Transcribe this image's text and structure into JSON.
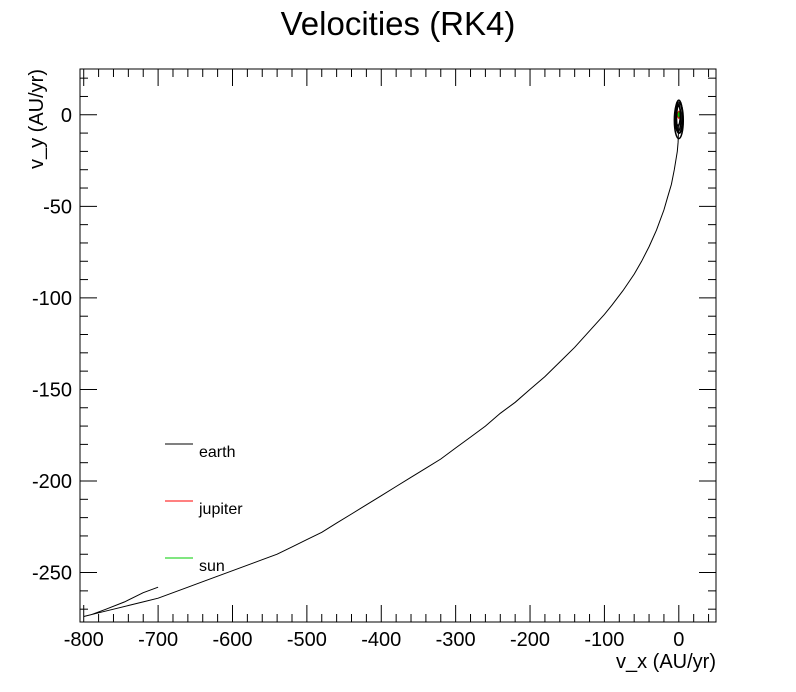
{
  "chart_data": {
    "type": "line",
    "title": "Velocities (RK4)",
    "xlabel": "v_x (AU/yr)",
    "ylabel": "v_y (AU/yr)",
    "xlim": [
      -805,
      50
    ],
    "ylim": [
      -277,
      25
    ],
    "xticks": [
      -800,
      -700,
      -600,
      -500,
      -400,
      -300,
      -200,
      -100,
      0
    ],
    "xtick_labels": [
      "-800",
      "-700",
      "-600",
      "-500",
      "-400",
      "-300",
      "-200",
      "-100",
      "0"
    ],
    "yticks": [
      0,
      -50,
      -100,
      -150,
      -200,
      -250
    ],
    "ytick_labels": [
      "0",
      "-50",
      "-100",
      "-150",
      "-200",
      "-250"
    ],
    "x_minor_step": 20,
    "y_minor_step": 10,
    "grid": false,
    "legend_position": "lower-left",
    "series": [
      {
        "name": "earth",
        "color": "#000000",
        "x": [
          0,
          -0.5,
          -1,
          -2,
          -4,
          -6,
          -10,
          -15,
          -20,
          -30,
          -40,
          -50,
          -60,
          -75,
          -90,
          -100,
          -120,
          -140,
          -160,
          -180,
          -200,
          -220,
          -240,
          -260,
          -280,
          -300,
          -320,
          -340,
          -360,
          -380,
          -400,
          -420,
          -440,
          -460,
          -480,
          -500,
          -520,
          -540,
          -560,
          -580,
          -600,
          -620,
          -640,
          -660,
          -680,
          -700,
          -720,
          -740,
          -760,
          -780,
          -800,
          -790,
          -770,
          -745,
          -720,
          -700
        ],
        "y": [
          -5,
          -10,
          -15,
          -20,
          -25,
          -30,
          -38,
          -45,
          -52,
          -63,
          -72,
          -80,
          -87,
          -96,
          -104,
          -109,
          -118,
          -127,
          -135,
          -143,
          -150,
          -157,
          -163,
          -170,
          -176,
          -182,
          -188,
          -193,
          -198,
          -203,
          -208,
          -213,
          -218,
          -223,
          -228,
          -232,
          -236,
          -240,
          -243,
          -246,
          -249,
          -252,
          -255,
          -258,
          -261,
          -264,
          -266,
          -268,
          -270,
          -272,
          -274,
          -273,
          -270,
          -266,
          -261,
          -258
        ]
      },
      {
        "name": "jupiter",
        "color": "#ff0000",
        "x": [
          1.5,
          1.0,
          0,
          -1.0,
          -1.5,
          -1.0,
          0,
          1.0,
          1.5
        ],
        "y": [
          0,
          1.0,
          1.5,
          1.0,
          0,
          -1.0,
          -1.5,
          -1.0,
          0
        ]
      },
      {
        "name": "sun",
        "color": "#00cc00",
        "x": [
          0.4,
          0,
          -0.4,
          0,
          0.4
        ],
        "y": [
          0,
          0.4,
          0,
          -0.4,
          0
        ]
      }
    ],
    "earth_orbit_loops": [
      {
        "cx": -1,
        "cy": -2,
        "rx": 4,
        "ry": 7
      },
      {
        "cx": 0,
        "cy": -1,
        "rx": 5,
        "ry": 9
      },
      {
        "cx": 1,
        "cy": -2,
        "rx": 4,
        "ry": 8
      },
      {
        "cx": -1,
        "cy": 0,
        "rx": 3,
        "ry": 6
      },
      {
        "cx": 0,
        "cy": -3,
        "rx": 6,
        "ry": 10
      }
    ],
    "legend": [
      {
        "label": "earth",
        "color": "#000000"
      },
      {
        "label": "jupiter",
        "color": "#ff0000"
      },
      {
        "label": "sun",
        "color": "#00cc00"
      }
    ]
  }
}
